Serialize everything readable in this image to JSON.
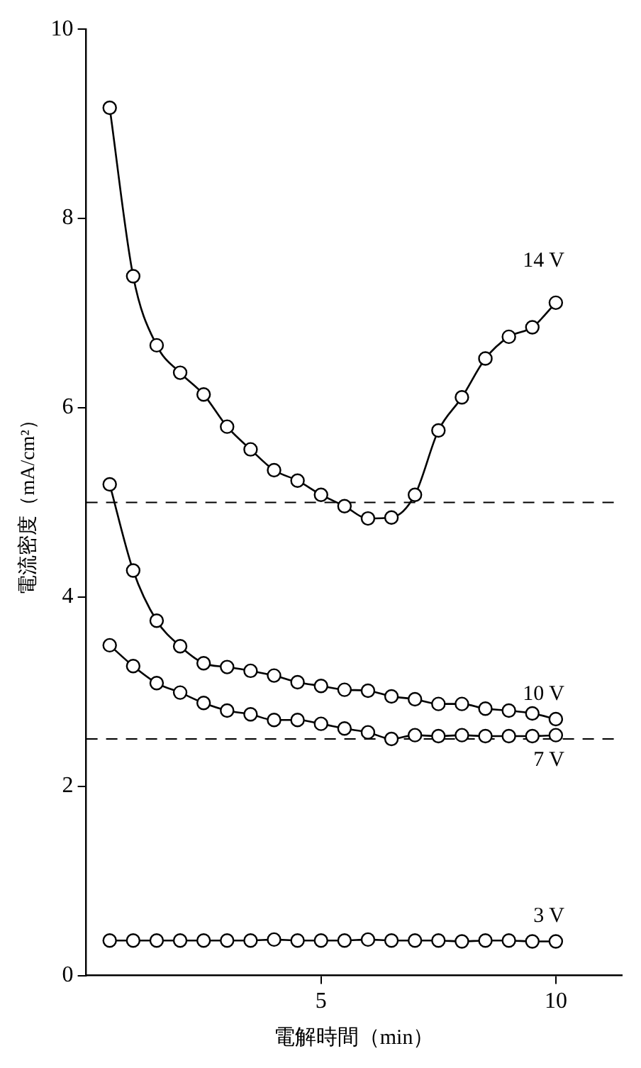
{
  "chart_data": {
    "type": "line",
    "xlabel": "電解時間（min）",
    "ylabel": "電流密度（mA/cm²）",
    "x": [
      0.5,
      1,
      1.5,
      2,
      2.5,
      3,
      3.5,
      4,
      4.5,
      5,
      5.5,
      6,
      6.5,
      7,
      7.5,
      8,
      8.5,
      9,
      9.5,
      10
    ],
    "series": [
      {
        "name": "14 V",
        "color": "#000000",
        "values": [
          9.17,
          7.39,
          6.66,
          6.37,
          6.14,
          5.8,
          5.56,
          5.34,
          5.23,
          5.08,
          4.96,
          4.83,
          4.84,
          5.08,
          5.76,
          6.11,
          6.52,
          6.75,
          6.85,
          7.11
        ]
      },
      {
        "name": "10 V",
        "color": "#000000",
        "values": [
          5.19,
          4.28,
          3.75,
          3.48,
          3.3,
          3.26,
          3.22,
          3.17,
          3.1,
          3.06,
          3.02,
          3.01,
          2.95,
          2.92,
          2.87,
          2.87,
          2.82,
          2.8,
          2.77,
          2.71
        ]
      },
      {
        "name": "7 V",
        "color": "#000000",
        "values": [
          3.49,
          3.27,
          3.09,
          2.99,
          2.88,
          2.8,
          2.76,
          2.7,
          2.7,
          2.66,
          2.61,
          2.57,
          2.5,
          2.54,
          2.53,
          2.54,
          2.53,
          2.53,
          2.53,
          2.54
        ]
      },
      {
        "name": "3 V",
        "color": "#000000",
        "values": [
          0.37,
          0.37,
          0.37,
          0.37,
          0.37,
          0.37,
          0.37,
          0.38,
          0.37,
          0.37,
          0.37,
          0.38,
          0.37,
          0.37,
          0.37,
          0.36,
          0.37,
          0.37,
          0.36,
          0.36
        ]
      }
    ],
    "xlim": [
      0,
      11.4
    ],
    "xticks": [
      5,
      10
    ],
    "ylim": [
      0,
      10
    ],
    "yticks": [
      0,
      2,
      4,
      6,
      8,
      10
    ],
    "ref_lines": [
      {
        "axis": "y",
        "value": 5,
        "line_style": "dashed",
        "color": "#000000"
      },
      {
        "axis": "y",
        "value": 2.5,
        "line_style": "dashed",
        "color": "#000000"
      }
    ],
    "grid": false,
    "legend": false,
    "marker": "circle",
    "line_style": "solid"
  }
}
